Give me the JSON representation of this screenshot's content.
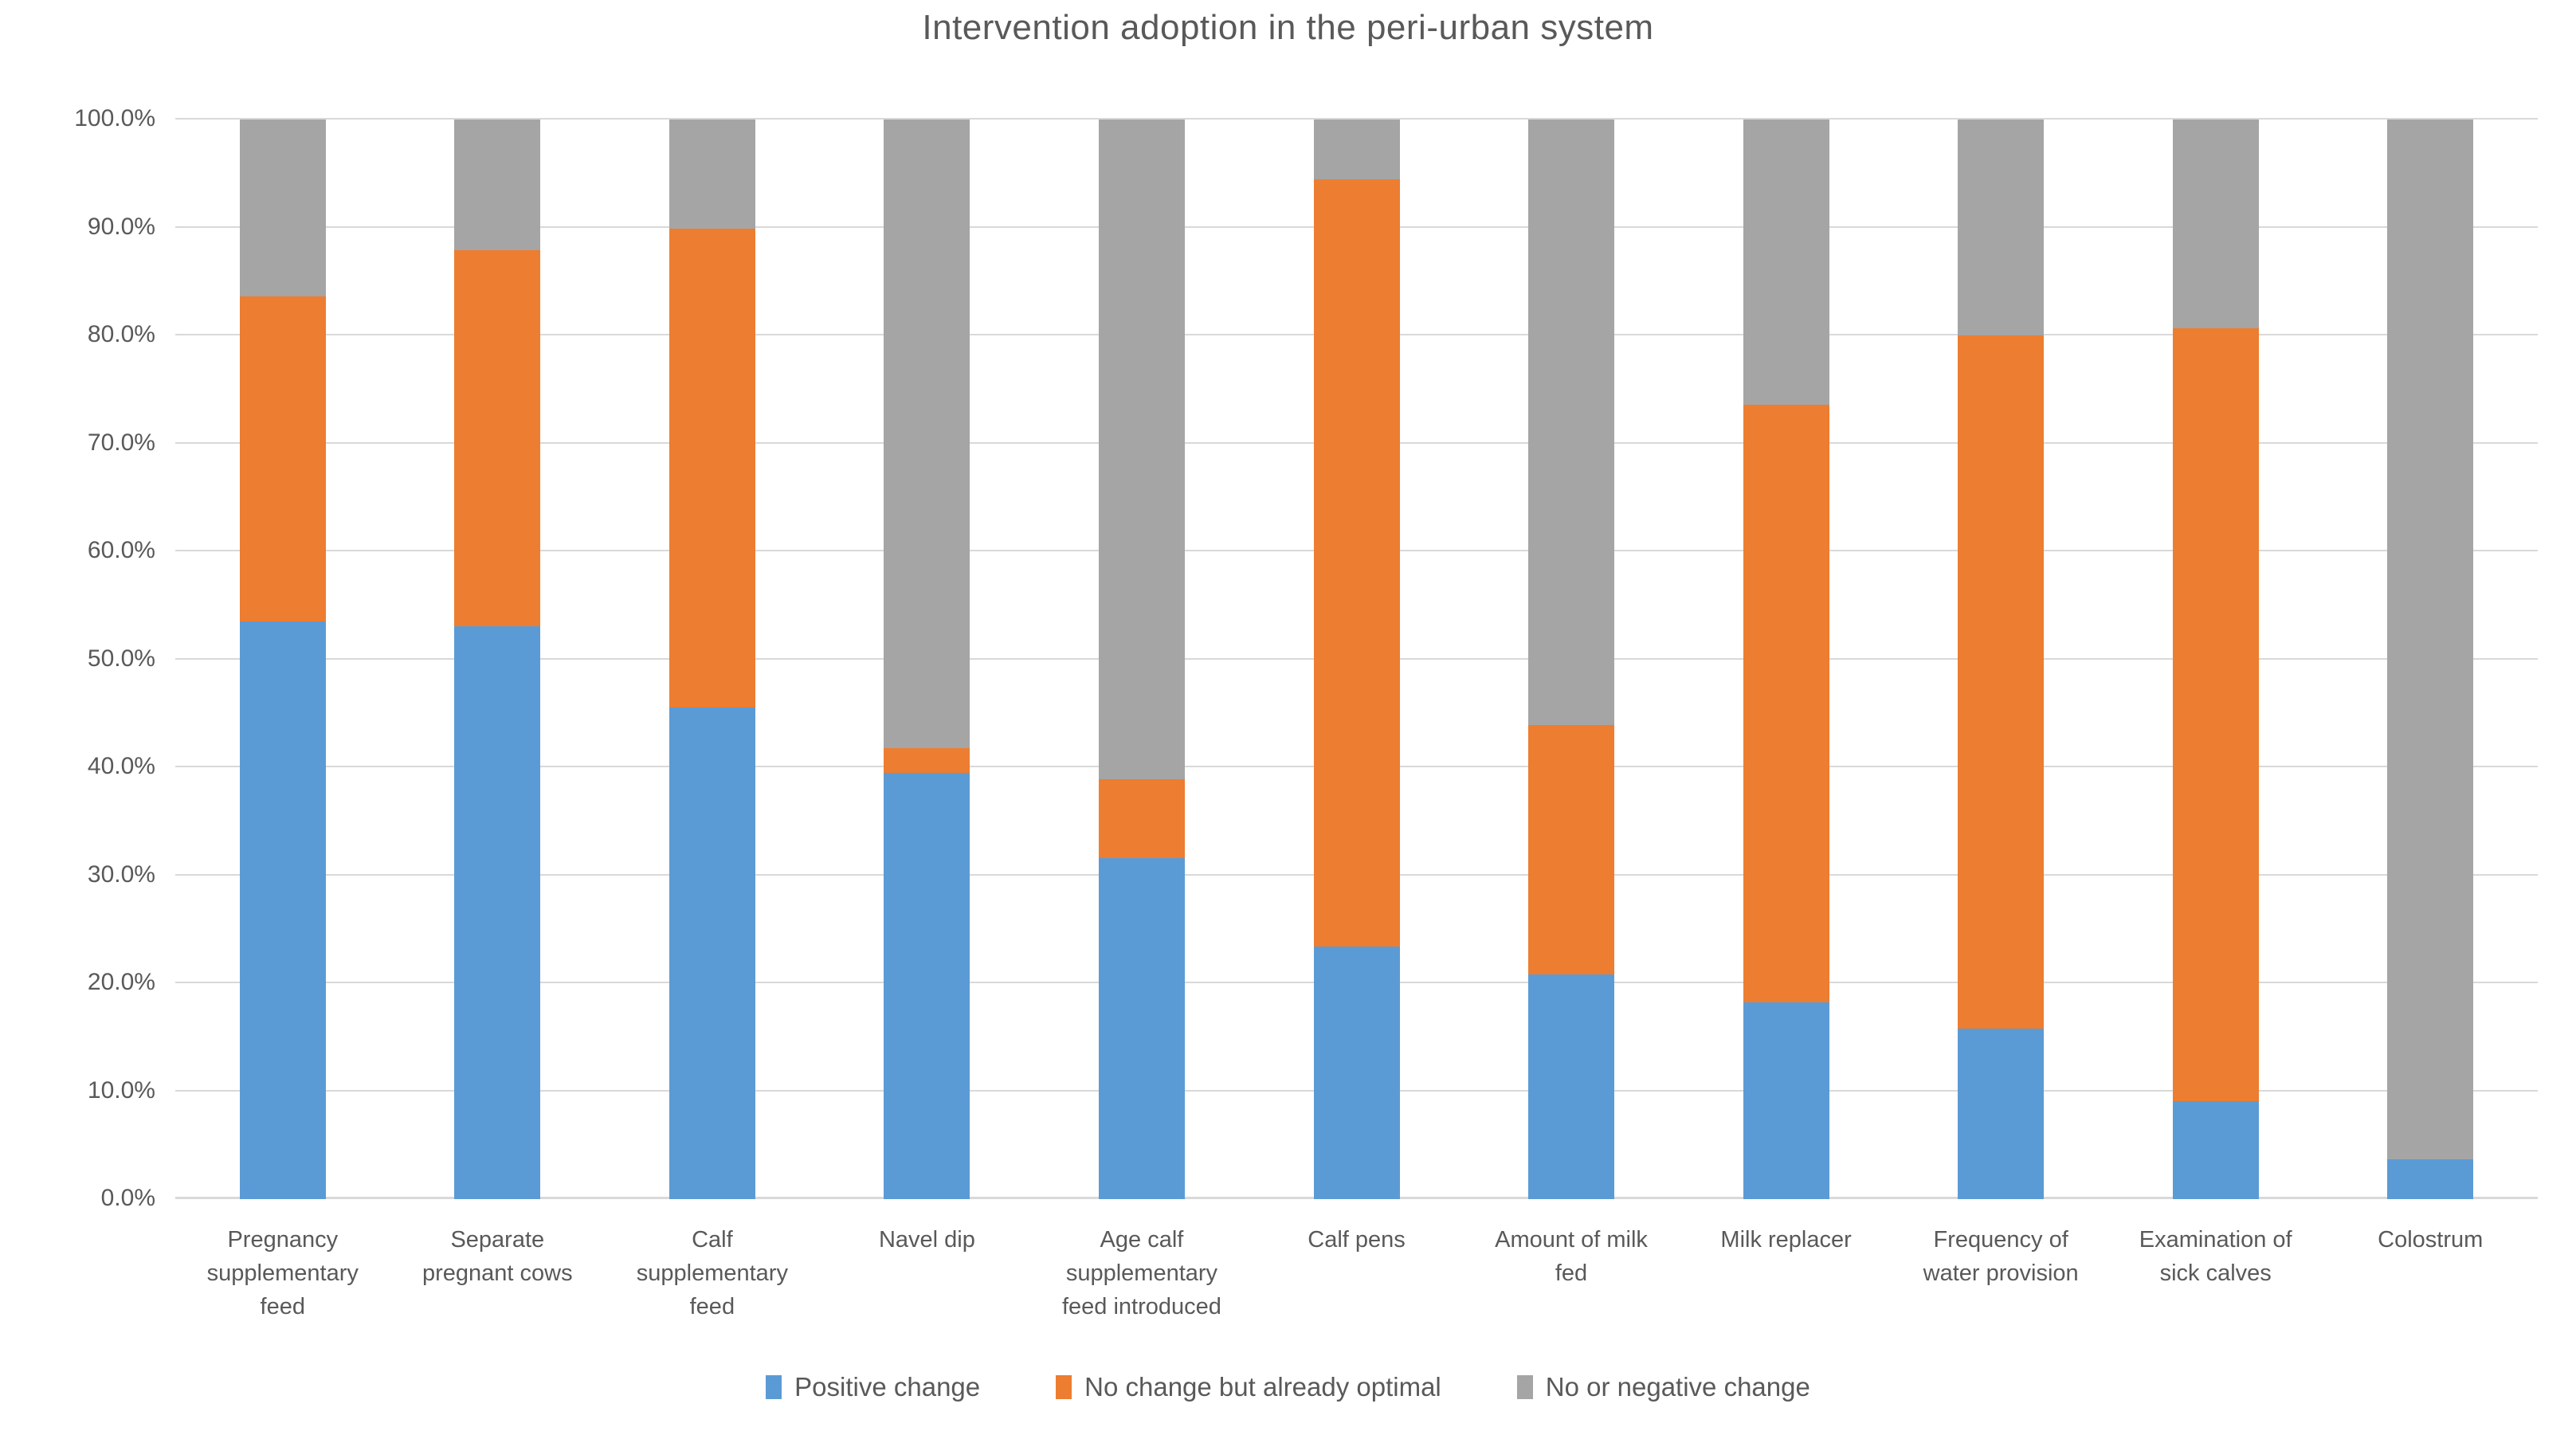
{
  "chart_data": {
    "type": "bar",
    "stacked": true,
    "title": "Intervention adoption in the peri-urban system",
    "categories": [
      "Pregnancy supplementary feed",
      "Separate pregnant cows",
      "Calf supplementary feed",
      "Navel dip",
      "Age calf supplementary feed introduced",
      "Calf pens",
      "Amount of milk fed",
      "Milk replacer",
      "Frequency of water provision",
      "Examination of sick calves",
      "Colostrum"
    ],
    "series": [
      {
        "name": "Positive change",
        "color": "#5B9BD5",
        "values": [
          53.5,
          53.1,
          45.5,
          39.5,
          31.6,
          23.4,
          20.8,
          18.2,
          15.8,
          9.1,
          3.7
        ]
      },
      {
        "name": "No change but already optimal",
        "color": "#ED7D31",
        "values": [
          30.1,
          34.8,
          44.4,
          2.3,
          7.3,
          71.1,
          23.1,
          55.4,
          64.2,
          71.6,
          0.0
        ]
      },
      {
        "name": "No or negative change",
        "color": "#A5A5A5",
        "values": [
          16.4,
          12.1,
          10.1,
          58.2,
          61.1,
          5.5,
          56.1,
          26.4,
          20.0,
          19.3,
          96.3
        ]
      }
    ],
    "ylim": [
      0,
      100
    ],
    "ytick_labels": [
      "0.0%",
      "10.0%",
      "20.0%",
      "30.0%",
      "40.0%",
      "50.0%",
      "60.0%",
      "70.0%",
      "80.0%",
      "90.0%",
      "100.0%"
    ],
    "grid": true,
    "legend_position": "bottom",
    "colors": {
      "grid": "#D9D9D9",
      "text": "#595959"
    }
  }
}
